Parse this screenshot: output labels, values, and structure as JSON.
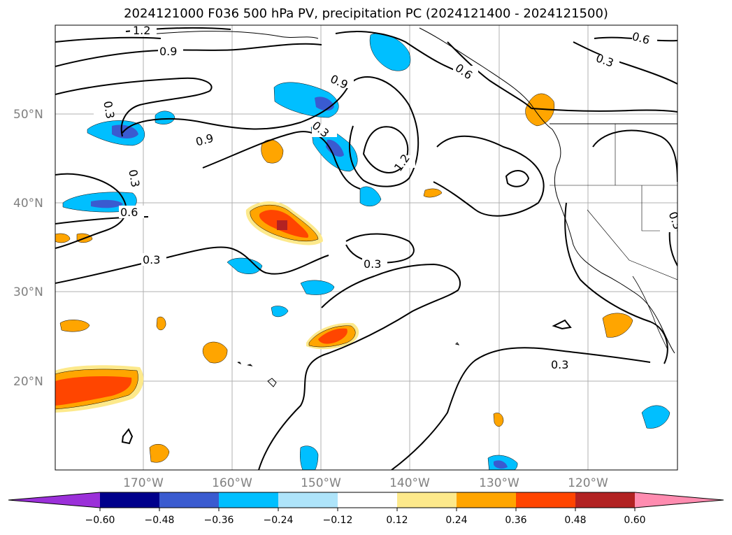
{
  "title": "2024121000 F036 500 hPa PV, precipitation PC (2024121400 - 2024121500)",
  "map": {
    "lat_labels": [
      "50°N",
      "40°N",
      "30°N",
      "20°N"
    ],
    "lon_labels": [
      "170°W",
      "160°W",
      "150°W",
      "140°W",
      "130°W",
      "120°W"
    ],
    "contour_labels": [
      "1.2",
      "0.9",
      "0.6",
      "0.3"
    ]
  },
  "colorbar": {
    "ticks": [
      "−0.60",
      "−0.48",
      "−0.36",
      "−0.24",
      "−0.12",
      "0.12",
      "0.24",
      "0.36",
      "0.48",
      "0.60"
    ],
    "colors": [
      "#9b30d9",
      "#00008b",
      "#3a5bd0",
      "#00bfff",
      "#aee4fa",
      "#ffffff",
      "#fde98b",
      "#ffa500",
      "#ff4500",
      "#b22222",
      "#ff8cb0"
    ]
  }
}
